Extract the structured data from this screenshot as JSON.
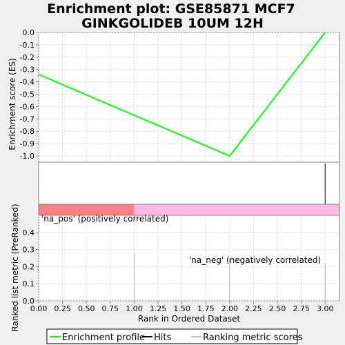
{
  "chart_data": {
    "type": "line",
    "title_line1": "Enrichment plot: GSE85871 MCF7",
    "title_line2": "GINKGOLIDEB 10UM 12H",
    "es_panel": {
      "ylabel": "Enrichment score (ES)",
      "ylim": [
        -1.05,
        0.0
      ],
      "yticks": [
        "0.0",
        "-0.1",
        "-0.2",
        "-0.3",
        "-0.4",
        "-0.5",
        "-0.6",
        "-0.7",
        "-0.8",
        "-0.9",
        "-1.0"
      ],
      "ytick_values": [
        0.0,
        -0.1,
        -0.2,
        -0.3,
        -0.4,
        -0.5,
        -0.6,
        -0.7,
        -0.8,
        -0.9,
        -1.0
      ],
      "series": [
        {
          "name": "Enrichment profile",
          "color": "#00ff00",
          "x": [
            0,
            2,
            3
          ],
          "y": [
            -0.34,
            -1.0,
            0.0
          ]
        }
      ]
    },
    "hits": {
      "x": [
        3
      ],
      "color": "#000000"
    },
    "color_bar": [
      {
        "from": 0,
        "to": 1,
        "color": "#ff8080"
      },
      {
        "from": 1,
        "to": 3.15,
        "color": "#ffbbe6"
      }
    ],
    "metric_panel": {
      "ylabel": "Ranked list metric (PreRanked)",
      "ylim": [
        0.0,
        0.5
      ],
      "yticks": [
        "0.0",
        "0.1",
        "0.2",
        "0.3",
        "0.4"
      ],
      "ytick_values": [
        0.0,
        0.1,
        0.2,
        0.3,
        0.4
      ],
      "bars": [
        {
          "x": 1,
          "value": 0.28
        },
        {
          "x": 2,
          "value": 0.25
        },
        {
          "x": 3,
          "value": 0.22
        }
      ],
      "pos_label": "'na_pos' (positively correlated)",
      "neg_label": "'na_neg' (negatively correlated)",
      "pos_color": "#cc0000",
      "neg_color": "#0000cc"
    },
    "xaxis": {
      "xlabel": "Rank in Ordered Dataset",
      "xlim": [
        0,
        3.15
      ],
      "xticks": [
        "0.00",
        "0.25",
        "0.50",
        "0.75",
        "1.00",
        "1.25",
        "1.50",
        "1.75",
        "2.00",
        "2.25",
        "2.50",
        "2.75",
        "3.00"
      ],
      "xtick_values": [
        0,
        0.25,
        0.5,
        0.75,
        1.0,
        1.25,
        1.5,
        1.75,
        2.0,
        2.25,
        2.5,
        2.75,
        3.0
      ]
    },
    "legend": [
      {
        "label": "Enrichment profile",
        "color": "#00ff00"
      },
      {
        "label": "Hits",
        "color": "#000000"
      },
      {
        "label": "Ranking metric scores",
        "color": "#c0c0c0"
      }
    ]
  }
}
